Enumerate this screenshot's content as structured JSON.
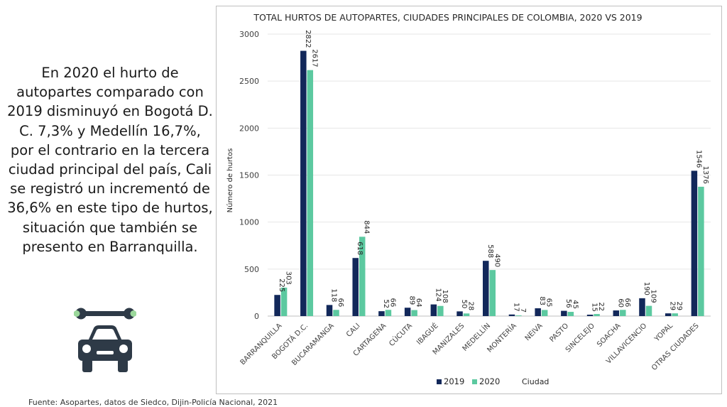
{
  "side_text": "En 2020 el hurto de autopartes comparado con 2019 disminuyó en Bogotá D. C. 7,3% y Medellín 16,7%, por el contrario en la tercera ciudad principal del país, Cali se registró un incrementó de 36,6% en este tipo de hurtos, situación que también se presento en Barranquilla.",
  "source": "Fuente: Asopartes, datos de Siedco, Dijin-Policía Nacional, 2021",
  "icon": "wrench-car-icon",
  "colors": {
    "series_2019": "#12285a",
    "series_2020": "#5cc9a0",
    "icon": "#2e3a47",
    "icon_accent": "#9bd89b"
  },
  "chart_data": {
    "type": "bar",
    "title": "TOTAL HURTOS DE AUTOPARTES, CIUDADES PRINCIPALES DE COLOMBIA, 2020 VS 2019",
    "xlabel": "Ciudad",
    "ylabel": "Número de hurtos",
    "ylim": [
      0,
      3000
    ],
    "yticks": [
      0,
      500,
      1000,
      1500,
      2000,
      2500,
      3000
    ],
    "grid": true,
    "legend_position": "bottom",
    "categories": [
      "BARRANQUILLA",
      "BOGOTÁ D.C.",
      "BUCARAMANGA",
      "CALI",
      "CARTAGENA",
      "CÚCUTA",
      "IBAGUÉ",
      "MANIZALES",
      "MEDELLÍN",
      "MONTERÍA",
      "NEIVA",
      "PASTO",
      "SINCELEJO",
      "SOACHA",
      "VILLAVICENCIO",
      "YOPAL",
      "OTRAS CIUDADES"
    ],
    "series": [
      {
        "name": "2019",
        "values": [
          225,
          2822,
          118,
          618,
          52,
          89,
          124,
          50,
          588,
          17,
          83,
          56,
          15,
          60,
          190,
          29,
          1546
        ]
      },
      {
        "name": "2020",
        "values": [
          303,
          2617,
          66,
          844,
          66,
          64,
          108,
          28,
          490,
          7,
          65,
          45,
          22,
          66,
          109,
          29,
          1376
        ]
      }
    ]
  }
}
